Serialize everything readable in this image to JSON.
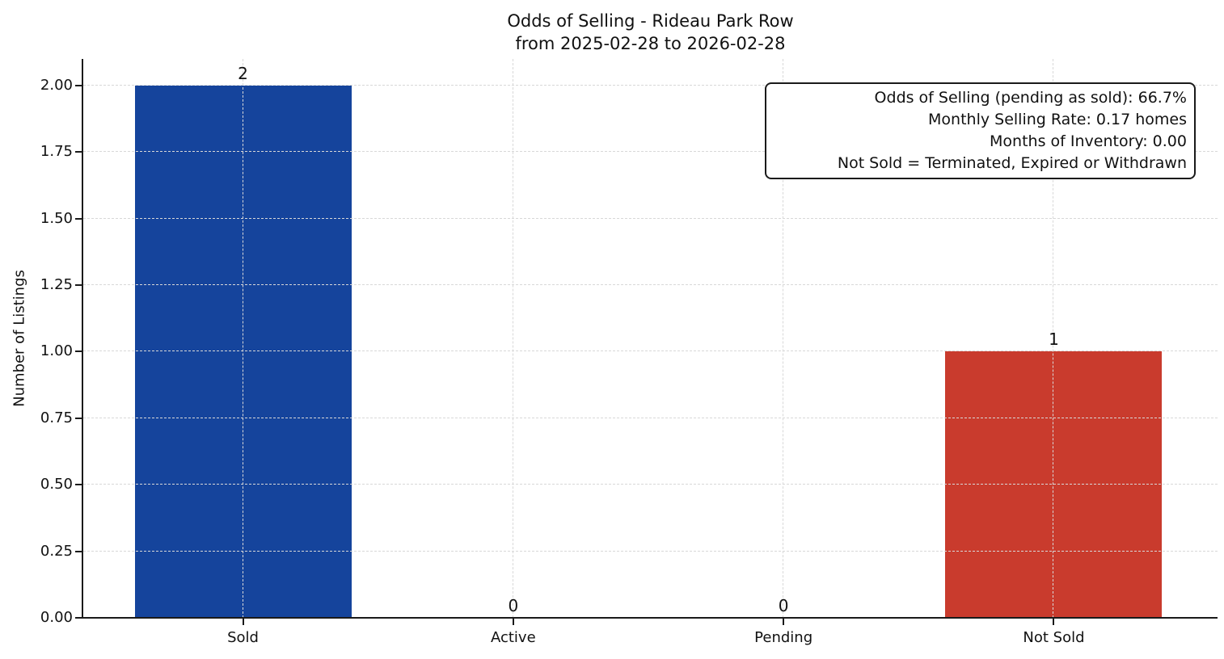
{
  "chart_data": {
    "type": "bar",
    "title": "Odds of Selling - Rideau Park Row",
    "subtitle": "from 2025-02-28 to 2026-02-28",
    "ylabel": "Number of Listings",
    "xlabel": "",
    "categories": [
      "Sold",
      "Active",
      "Pending",
      "Not Sold"
    ],
    "values": [
      2,
      0,
      0,
      1
    ],
    "bar_value_labels": [
      "2",
      "0",
      "0",
      "1"
    ],
    "bar_colors": [
      "#15449c",
      null,
      null,
      "#c93b2d"
    ],
    "ylim": [
      0,
      2.1
    ],
    "yticks": [
      0,
      0.25,
      0.5,
      0.75,
      1.0,
      1.25,
      1.5,
      1.75,
      2.0
    ],
    "ytick_labels": [
      "0.00",
      "0.25",
      "0.50",
      "0.75",
      "1.00",
      "1.25",
      "1.50",
      "1.75",
      "2.00"
    ],
    "grid": true,
    "grid_style": "dashed",
    "legend": null,
    "annotation": {
      "position": "top-right",
      "lines": [
        "Odds of Selling (pending as sold): 66.7%",
        "Monthly Selling Rate: 0.17 homes",
        "Months of Inventory: 0.00",
        "Not Sold = Terminated, Expired or Withdrawn"
      ]
    }
  }
}
